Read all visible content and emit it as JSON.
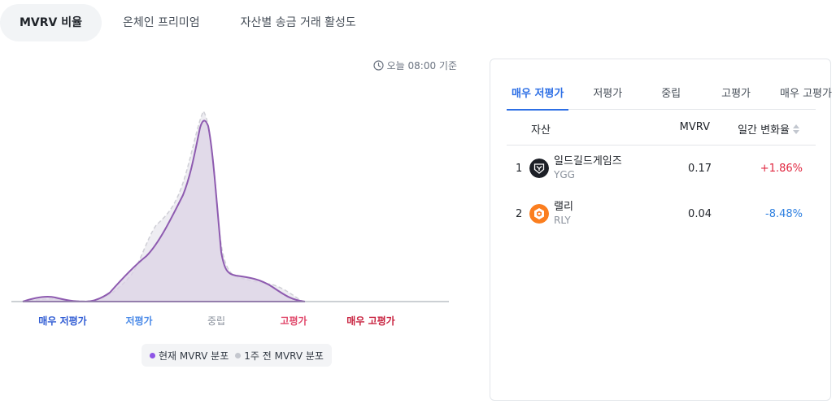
{
  "tabs": [
    {
      "label": "MVRV 비율",
      "active": true
    },
    {
      "label": "온체인 프리미엄",
      "active": false
    },
    {
      "label": "자산별 송금 거래 활성도",
      "active": false
    }
  ],
  "timestamp": "오늘 08:00 기준",
  "zones": [
    {
      "label": "매우 저평가",
      "color": "#2f5bd3"
    },
    {
      "label": "저평가",
      "color": "#4a8ae8"
    },
    {
      "label": "중립",
      "color": "#8a919c"
    },
    {
      "label": "고평가",
      "color": "#e0476a"
    },
    {
      "label": "매우 고평가",
      "color": "#c8223f"
    }
  ],
  "legend": {
    "current": {
      "label": "현재 MVRV 분포",
      "color": "#8e55e6"
    },
    "previous": {
      "label": "1주 전 MVRV 분포",
      "color": "#c4c7ce"
    }
  },
  "chart_data": {
    "type": "area",
    "series": [
      {
        "name": "현재 MVRV 분포",
        "color": "#8e5bb0"
      },
      {
        "name": "1주 전 MVRV 분포",
        "color": "#cfcfd6"
      }
    ]
  },
  "panel": {
    "tabs": [
      {
        "label": "매우 저평가",
        "active": true
      },
      {
        "label": "저평가",
        "active": false
      },
      {
        "label": "중립",
        "active": false
      },
      {
        "label": "고평가",
        "active": false
      },
      {
        "label": "매우 고평가",
        "active": false
      }
    ],
    "headers": {
      "asset": "자산",
      "mvrv": "MVRV",
      "change": "일간 변화율"
    },
    "rows": [
      {
        "rank": "1",
        "name": "일드길드게임즈",
        "symbol": "YGG",
        "mvrv": "0.17",
        "change": "+1.86%",
        "change_color": "#e0263f",
        "icon": "ygg-logo-icon"
      },
      {
        "rank": "2",
        "name": "랠리",
        "symbol": "RLY",
        "mvrv": "0.04",
        "change": "-8.48%",
        "change_color": "#2d7fe0",
        "icon": "rly-logo-icon"
      }
    ]
  }
}
